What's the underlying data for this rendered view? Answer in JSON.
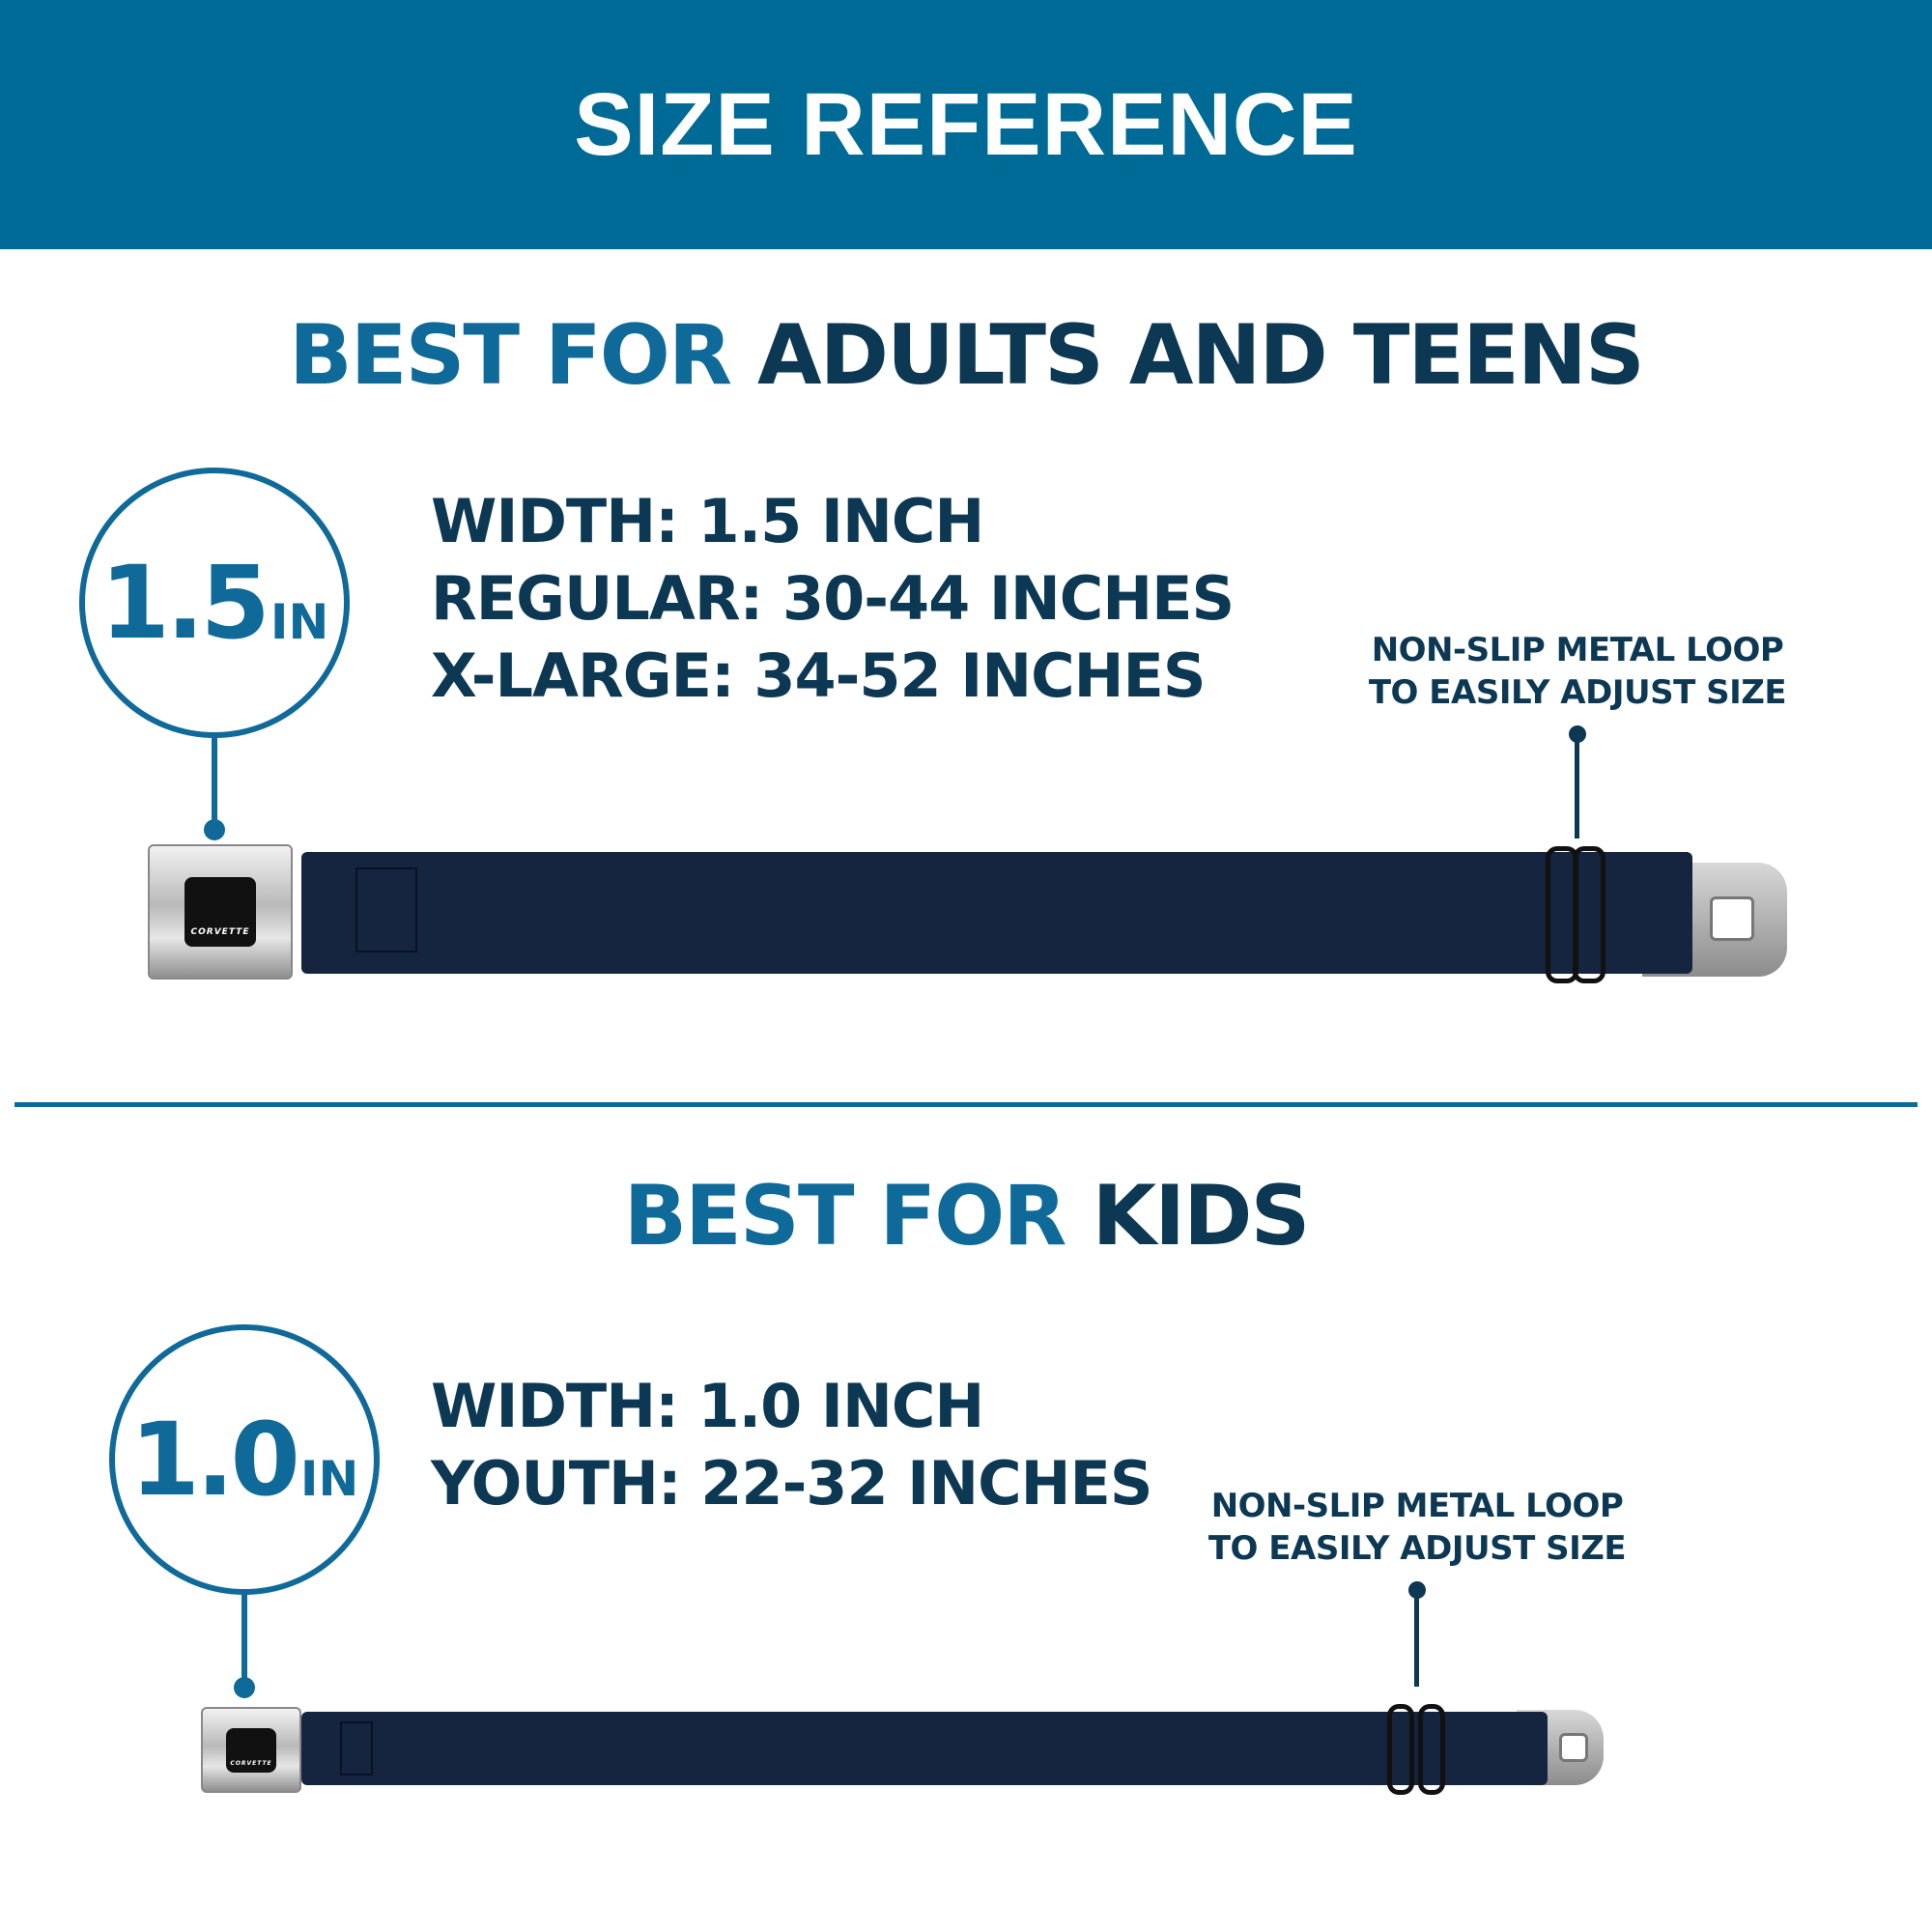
{
  "header": {
    "title": "SIZE REFERENCE"
  },
  "colors": {
    "header_bg": "#006a96",
    "accent": "#0f6a9a",
    "dark_text": "#0d3854",
    "strap": "#15243f"
  },
  "adults": {
    "title_accent": "BEST FOR",
    "title_main": "ADULTS AND TEENS",
    "badge_number": "1.5",
    "badge_unit": "IN",
    "specs": [
      "WIDTH: 1.5 INCH",
      "REGULAR: 30-44 INCHES",
      "X-LARGE: 34-52 INCHES"
    ],
    "note": [
      "NON-SLIP METAL LOOP",
      "TO EASILY ADJUST SIZE"
    ],
    "buckle_logo": "CORVETTE"
  },
  "kids": {
    "title_accent": "BEST FOR",
    "title_main": "KIDS",
    "badge_number": "1.0",
    "badge_unit": "IN",
    "specs": [
      "WIDTH: 1.0 INCH",
      "YOUTH: 22-32 INCHES"
    ],
    "note": [
      "NON-SLIP METAL LOOP",
      "TO EASILY ADJUST SIZE"
    ],
    "buckle_logo": "CORVETTE"
  }
}
